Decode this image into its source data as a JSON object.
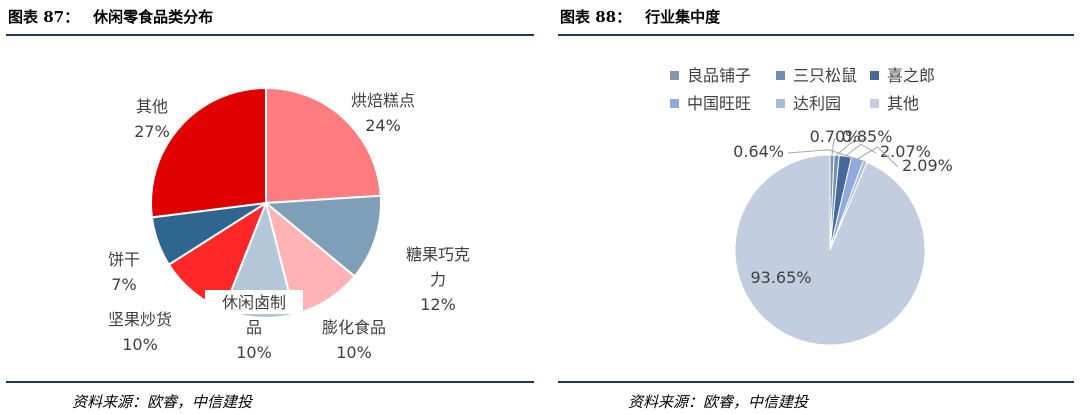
{
  "left": {
    "figure_number": "图表 87：",
    "figure_title": "休闲零食品类分布",
    "source": "资料来源：欧睿，中信建投"
  },
  "right": {
    "figure_number": "图表 88：",
    "figure_title": "行业集中度",
    "source": "资料来源：欧睿，中信建投"
  },
  "chart_data": [
    {
      "type": "pie",
      "title": "休闲零食品类分布",
      "categories": [
        "烘焙糕点",
        "糖果巧克力",
        "膨化食品",
        "休闲卤制品",
        "坚果炒货",
        "饼干",
        "其他"
      ],
      "category_lines": [
        [
          "烘焙糕点"
        ],
        [
          "糖果巧克",
          "力"
        ],
        [
          "膨化食品"
        ],
        [
          "休闲卤制",
          "品"
        ],
        [
          "坚果炒货"
        ],
        [
          "饼干"
        ],
        [
          "其他"
        ]
      ],
      "values": [
        24,
        12,
        10,
        10,
        10,
        7,
        27
      ],
      "value_labels": [
        "24%",
        "12%",
        "10%",
        "10%",
        "10%",
        "7%",
        "27%"
      ],
      "colors": [
        "#ff7c80",
        "#7f9fb8",
        "#ffb3b5",
        "#b4c7d8",
        "#ff2727",
        "#2f6690",
        "#e00000"
      ],
      "legend": "none"
    },
    {
      "type": "pie",
      "title": "行业集中度",
      "categories": [
        "良品铺子",
        "三只松鼠",
        "喜之郎",
        "中国旺旺",
        "达利园",
        "其他"
      ],
      "values": [
        0.7,
        0.85,
        2.07,
        2.09,
        0.64,
        93.65
      ],
      "value_labels": [
        "0.70%",
        "0.85%",
        "2.07%",
        "2.09%",
        "0.64%",
        "93.65%"
      ],
      "colors": [
        "#8497b0",
        "#6e8db8",
        "#44699a",
        "#8faadc",
        "#a9bcd6",
        "#c2cde0"
      ],
      "legend": "top"
    }
  ]
}
